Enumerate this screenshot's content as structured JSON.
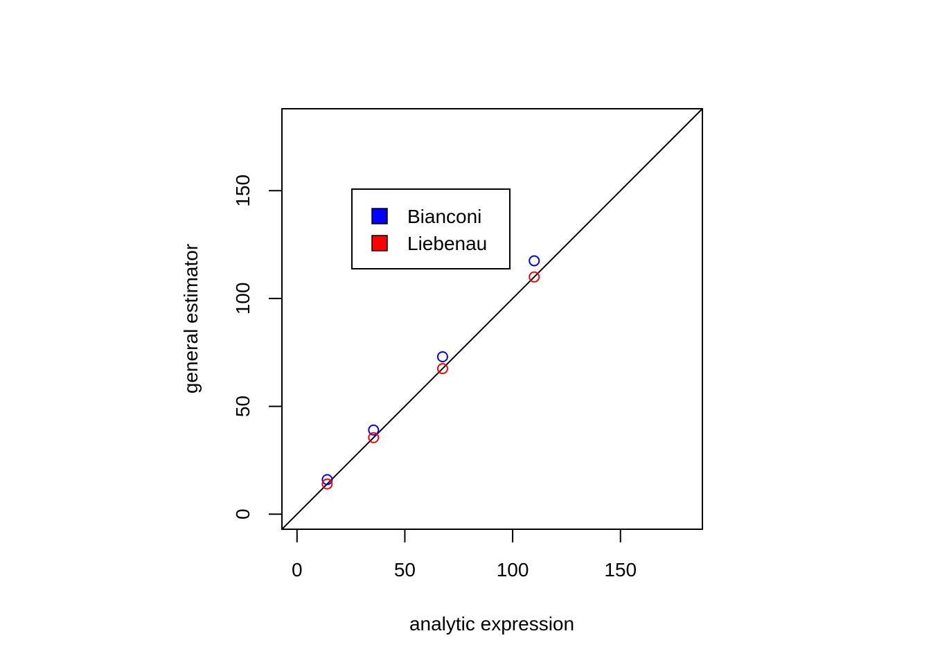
{
  "chart_data": {
    "type": "scatter",
    "title": "",
    "xlabel": "analytic expression",
    "ylabel": "general estimator",
    "xlim": [
      -7,
      188
    ],
    "ylim": [
      -7,
      188
    ],
    "xticks": [
      0,
      50,
      100,
      150
    ],
    "yticks": [
      0,
      50,
      100,
      150
    ],
    "xtick_labels": [
      "0",
      "50",
      "100",
      "150"
    ],
    "ytick_labels": [
      "0",
      "50",
      "100",
      "150"
    ],
    "reference_line": "y = x",
    "grid": false,
    "legend_position": "top-left",
    "series": [
      {
        "name": "Bianconi",
        "color": "#0000ff",
        "marker": "open-circle",
        "x": [
          14,
          35.5,
          67.5,
          110
        ],
        "y": [
          16,
          39,
          73,
          117.5
        ]
      },
      {
        "name": "Liebenau",
        "color": "#ff0000",
        "marker": "open-circle",
        "x": [
          14,
          35.5,
          67.5,
          110
        ],
        "y": [
          14,
          35.5,
          67.5,
          110
        ]
      }
    ]
  }
}
